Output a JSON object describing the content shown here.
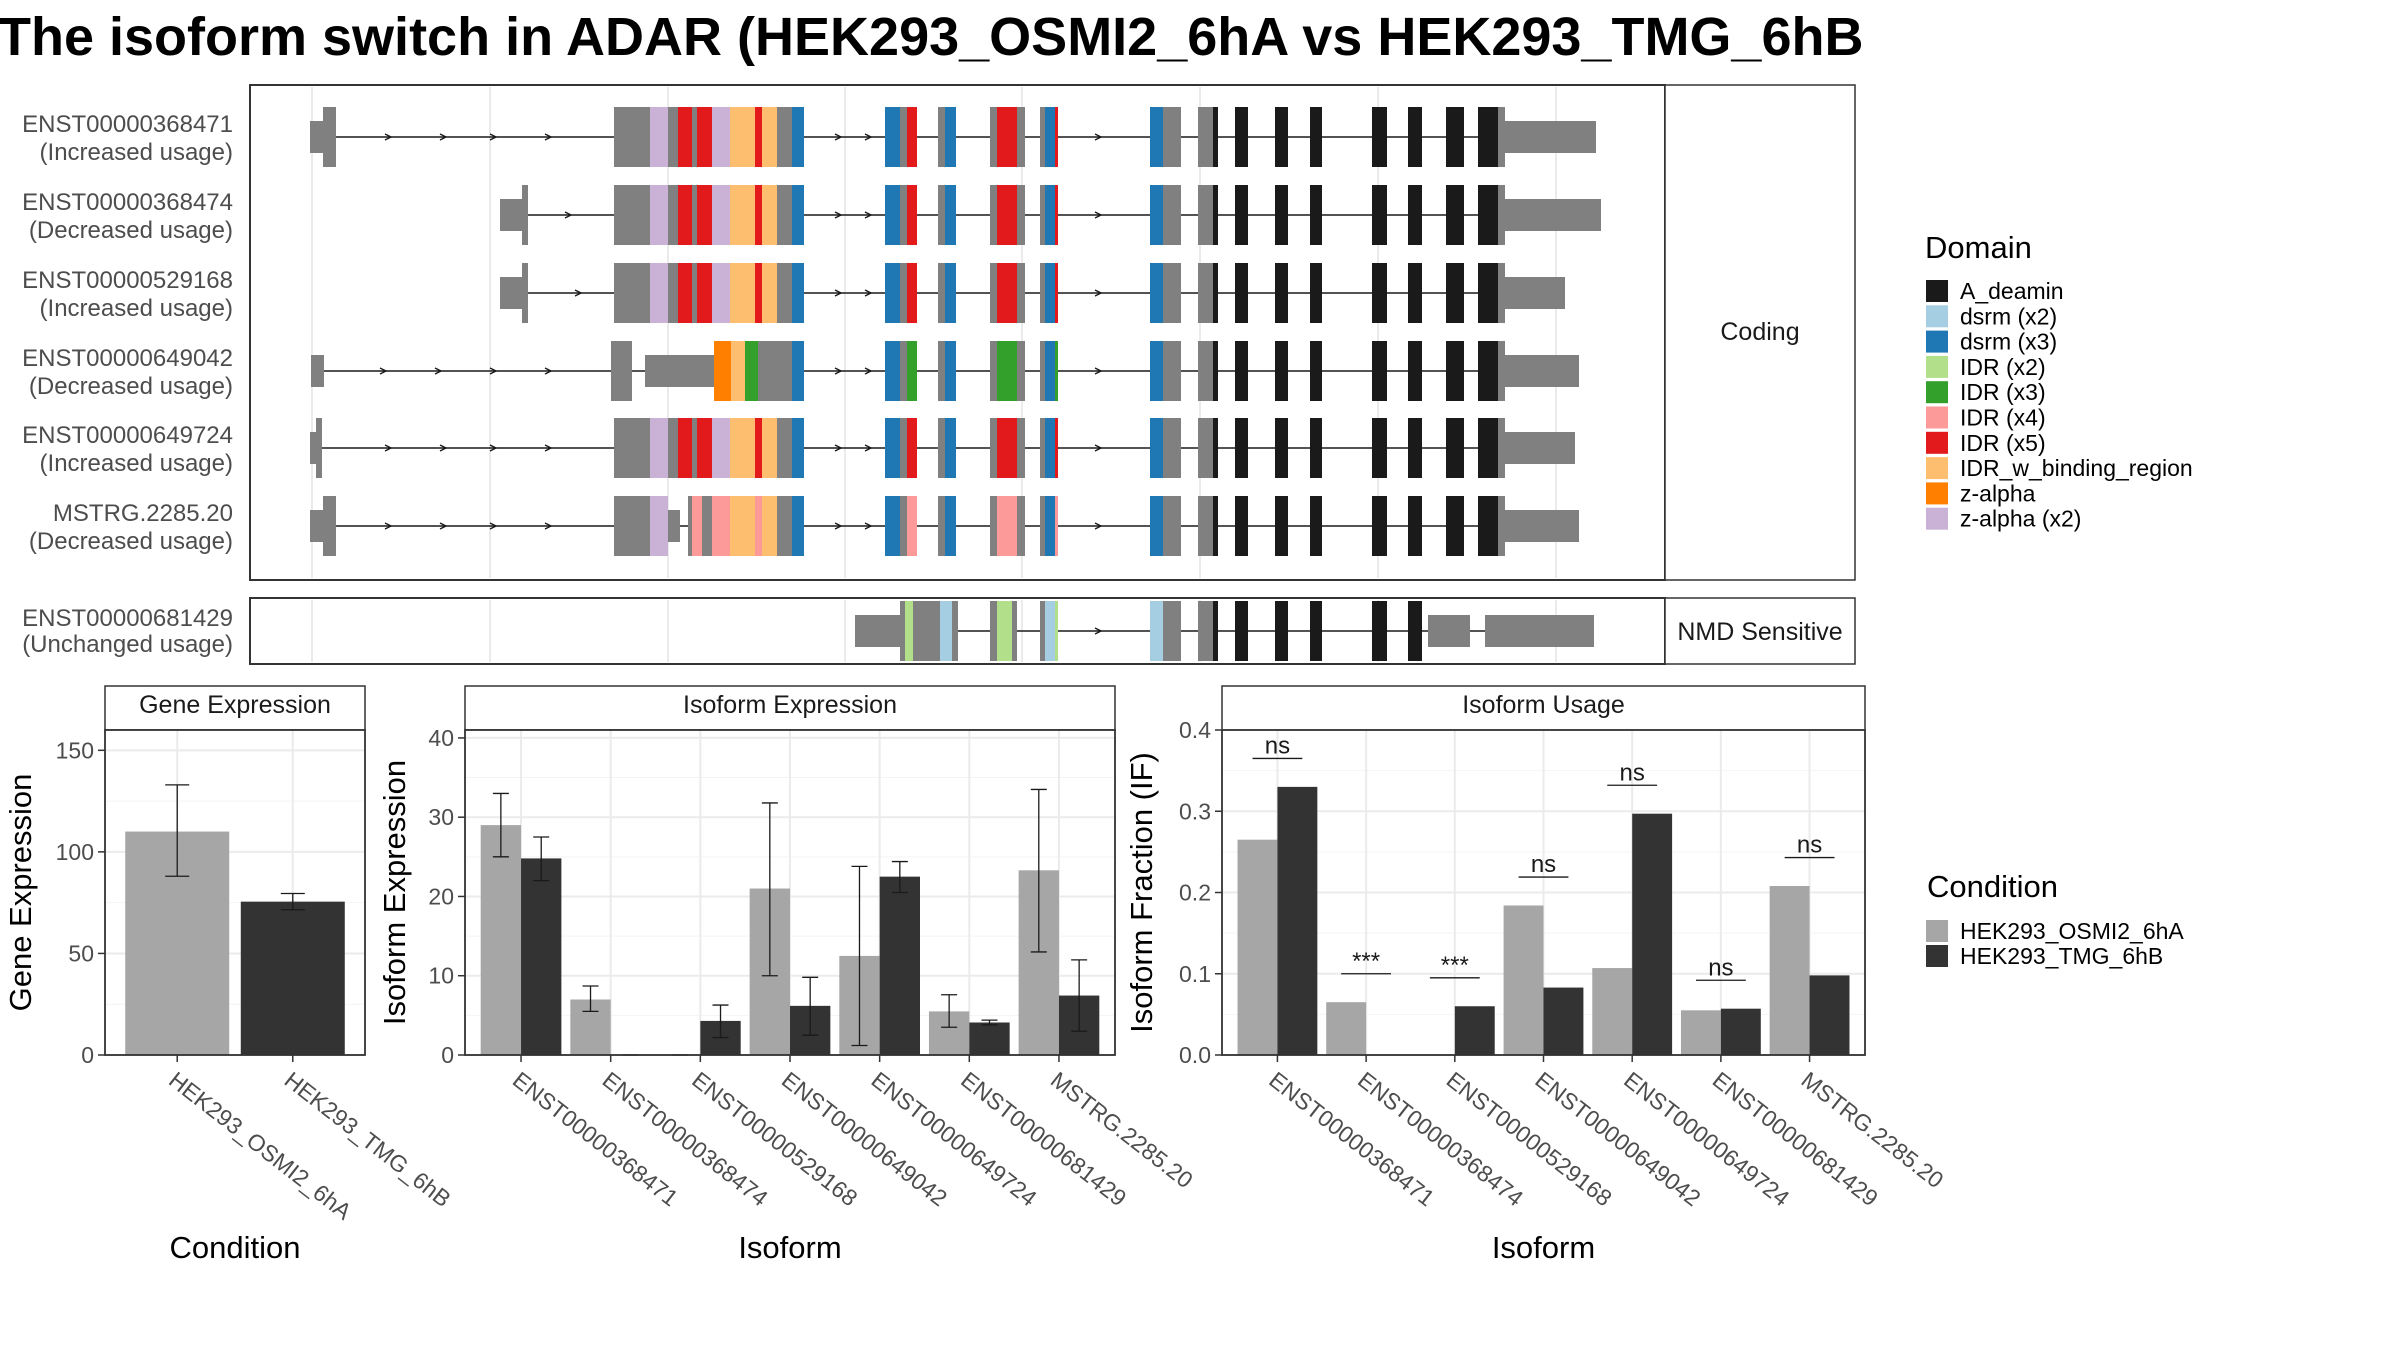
{
  "title": "The isoform switch in ADAR (HEK293_OSMI2_6hA vs HEK293_TMG_6hB",
  "colors": {
    "intron": "#1a1a1a",
    "utr": "#808080",
    "cond_a": "#a6a6a6",
    "cond_b": "#333333",
    "panel_border": "#333333",
    "grid": "#ebebeb",
    "strip_fill": "#ffffff"
  },
  "structure": {
    "strip_coding": "Coding",
    "strip_nmd": "NMD Sensitive",
    "coding_transcripts": [
      {
        "id": "ENST00000368471",
        "usage": "(Increased usage)"
      },
      {
        "id": "ENST00000368474",
        "usage": "(Decreased usage)"
      },
      {
        "id": "ENST00000529168",
        "usage": "(Increased usage)"
      },
      {
        "id": "ENST00000649042",
        "usage": "(Decreased usage)"
      },
      {
        "id": "ENST00000649724",
        "usage": "(Increased usage)"
      },
      {
        "id": "MSTRG.2285.20",
        "usage": "(Decreased usage)"
      }
    ],
    "nmd_transcripts": [
      {
        "id": "ENST00000681429",
        "usage": "(Unchanged usage)"
      }
    ]
  },
  "domain_legend": {
    "title": "Domain",
    "items": [
      {
        "label": "A_deamin",
        "color": "#1a1a1a"
      },
      {
        "label": "dsrm (x2)",
        "color": "#a6cee3"
      },
      {
        "label": "dsrm (x3)",
        "color": "#1f78b4"
      },
      {
        "label": "IDR (x2)",
        "color": "#b2df8a"
      },
      {
        "label": "IDR (x3)",
        "color": "#33a02c"
      },
      {
        "label": "IDR (x4)",
        "color": "#fb9a99"
      },
      {
        "label": "IDR (x5)",
        "color": "#e31a1c"
      },
      {
        "label": "IDR_w_binding_region",
        "color": "#fdbf6f"
      },
      {
        "label": "z-alpha",
        "color": "#ff7f00"
      },
      {
        "label": "z-alpha (x2)",
        "color": "#cab2d6"
      }
    ]
  },
  "condition_legend": {
    "title": "Condition",
    "items": [
      {
        "label": "HEK293_OSMI2_6hA",
        "color": "#a6a6a6"
      },
      {
        "label": "HEK293_TMG_6hB",
        "color": "#333333"
      }
    ]
  },
  "chart_data": [
    {
      "type": "bar",
      "title": "Gene Expression",
      "xlabel": "Condition",
      "ylabel": "Gene Expression",
      "ylim": [
        0,
        160
      ],
      "yticks": [
        0,
        50,
        100,
        150
      ],
      "categories": [
        "HEK293_OSMI2_6hA",
        "HEK293_TMG_6hB"
      ],
      "values": [
        110,
        75.5
      ],
      "error": [
        [
          88,
          133
        ],
        [
          71.5,
          79.5
        ]
      ],
      "colors": [
        "#a6a6a6",
        "#333333"
      ]
    },
    {
      "type": "bar",
      "title": "Isoform Expression",
      "xlabel": "Isoform",
      "ylabel": "Isoform Expression",
      "ylim": [
        0,
        41
      ],
      "yticks": [
        0,
        10,
        20,
        30,
        40
      ],
      "categories": [
        "ENST00000368471",
        "ENST00000368474",
        "ENST00000529168",
        "ENST00000649042",
        "ENST00000649724",
        "ENST00000681429",
        "MSTRG.2285.20"
      ],
      "series": [
        {
          "name": "HEK293_OSMI2_6hA",
          "values": [
            29,
            7,
            0,
            21,
            12.5,
            5.5,
            23.3
          ],
          "error": [
            [
              25,
              33
            ],
            [
              5.5,
              8.7
            ],
            [
              0,
              0
            ],
            [
              10,
              31.8
            ],
            [
              1.2,
              23.8
            ],
            [
              3.5,
              7.6
            ],
            [
              13,
              33.5
            ]
          ]
        },
        {
          "name": "HEK293_TMG_6hB",
          "values": [
            24.8,
            0,
            4.3,
            6.2,
            22.5,
            4.1,
            7.5
          ],
          "error": [
            [
              22,
              27.5
            ],
            [
              0,
              0
            ],
            [
              2.2,
              6.3
            ],
            [
              2.5,
              9.8
            ],
            [
              20.5,
              24.4
            ],
            [
              3.8,
              4.4
            ],
            [
              3,
              12
            ]
          ]
        }
      ]
    },
    {
      "type": "bar",
      "title": "Isoform Usage",
      "xlabel": "Isoform",
      "ylabel": "Isoform Fraction (IF)",
      "ylim": [
        0,
        0.4
      ],
      "yticks": [
        "0.0",
        "0.1",
        "0.2",
        "0.3",
        "0.4"
      ],
      "categories": [
        "ENST00000368471",
        "ENST00000368474",
        "ENST00000529168",
        "ENST00000649042",
        "ENST00000649724",
        "ENST00000681429",
        "MSTRG.2285.20"
      ],
      "series": [
        {
          "name": "HEK293_OSMI2_6hA",
          "values": [
            0.265,
            0.065,
            0,
            0.184,
            0.107,
            0.055,
            0.208
          ]
        },
        {
          "name": "HEK293_TMG_6hB",
          "values": [
            0.33,
            0,
            0.06,
            0.083,
            0.297,
            0.057,
            0.098
          ]
        }
      ],
      "significance": [
        "ns",
        "***",
        "***",
        "ns",
        "ns",
        "ns",
        "ns"
      ]
    }
  ]
}
